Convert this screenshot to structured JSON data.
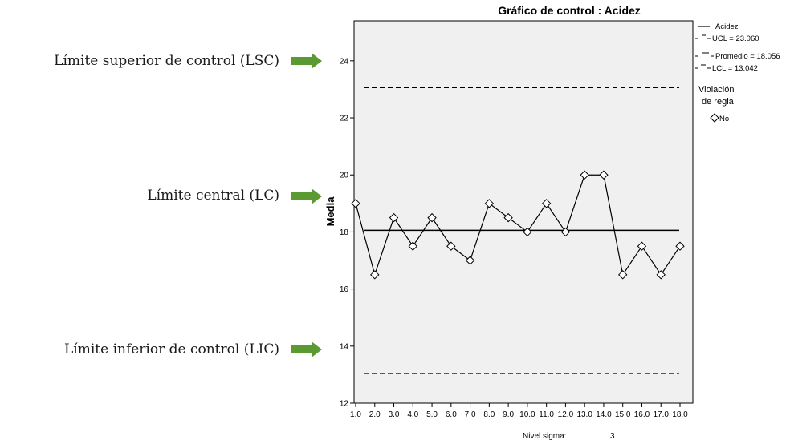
{
  "annotations": {
    "lsc": "Límite superior de control (LSC)",
    "lc": "Límite central (LC)",
    "lic": "Límite inferior de control (LIC)",
    "arrow_color": "#5b9a32"
  },
  "legend": {
    "series": "Acidez",
    "ucl": "UCL = 23.060",
    "center": "Promedio = 18.056",
    "lcl": "LCL = 13.042",
    "violation_title_1": "Violación",
    "violation_title_2": "de regla",
    "violation_no": "No"
  },
  "sigma": {
    "label": "Nivel sigma:",
    "value": "3"
  },
  "chart_data": {
    "type": "line",
    "title": "Gráfico de control : Acidez",
    "xlabel": "",
    "ylabel": "Media",
    "categories": [
      "1.0",
      "2.0",
      "3.0",
      "4.0",
      "5.0",
      "6.0",
      "7.0",
      "8.0",
      "9.0",
      "10.0",
      "11.0",
      "12.0",
      "13.0",
      "14.0",
      "15.0",
      "16.0",
      "17.0",
      "18.0"
    ],
    "series": [
      {
        "name": "Acidez",
        "values": [
          19.0,
          16.5,
          18.5,
          17.5,
          18.5,
          17.5,
          17.0,
          19.0,
          18.5,
          18.0,
          19.0,
          18.0,
          20.0,
          20.0,
          16.5,
          17.5,
          16.5,
          17.5
        ]
      }
    ],
    "ucl": 23.06,
    "center": 18.056,
    "lcl": 13.042,
    "ylim": [
      12,
      25.4
    ],
    "yticks": [
      12,
      14,
      16,
      18,
      20,
      22,
      24
    ],
    "plot_background": "#f0f0f0",
    "legend_position": "right",
    "marker": "diamond-open",
    "grid": false
  }
}
